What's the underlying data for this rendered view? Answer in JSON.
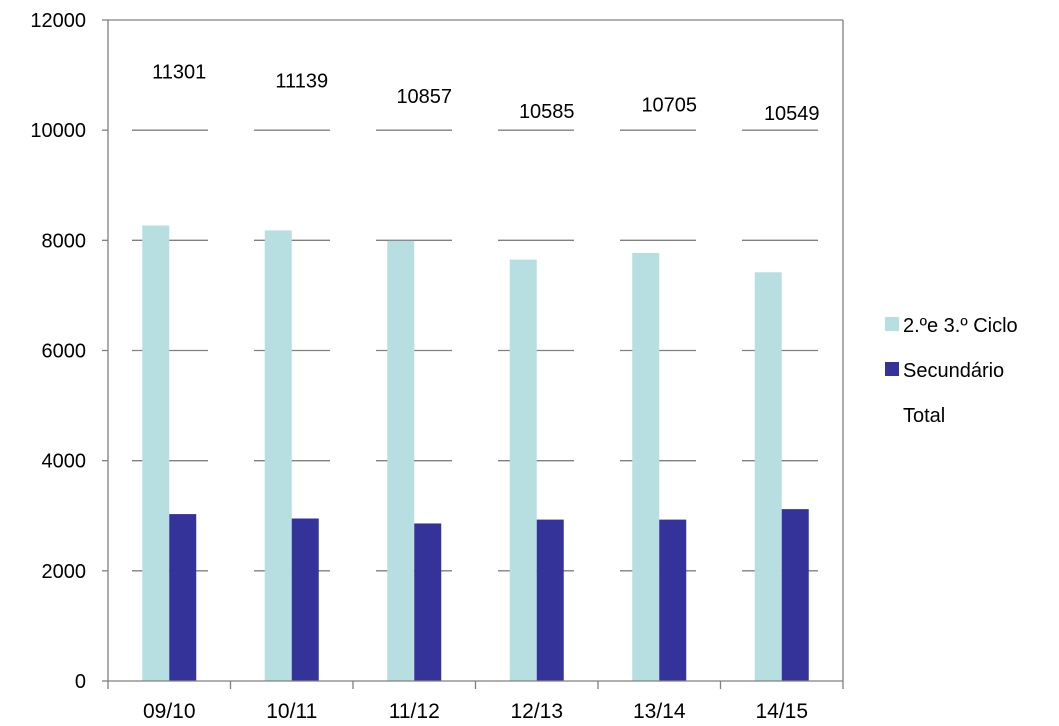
{
  "chart_data": {
    "type": "bar",
    "categories": [
      "09/10",
      "10/11",
      "11/12",
      "12/13",
      "13/14",
      "14/15"
    ],
    "series": [
      {
        "name": "2.ºe 3.º Ciclo",
        "color": "#b7dee0",
        "values": [
          8270,
          8180,
          7990,
          7650,
          7770,
          7420
        ]
      },
      {
        "name": "Secundário",
        "color": "#333399",
        "values": [
          3030,
          2950,
          2860,
          2930,
          2930,
          3120
        ]
      },
      {
        "name": "Total",
        "color": "#ffffff",
        "values": [
          11301,
          11139,
          10857,
          10585,
          10705,
          10549
        ],
        "display": "labels"
      }
    ],
    "total_labels": [
      "11301",
      "11139",
      "10857",
      "10585",
      "10705",
      "10549"
    ],
    "y_ticks": [
      "0",
      "2000",
      "4000",
      "6000",
      "8000",
      "10000",
      "12000"
    ],
    "ylim": [
      0,
      12000
    ],
    "grid": "dashed-horizontal",
    "legend_position": "right"
  }
}
